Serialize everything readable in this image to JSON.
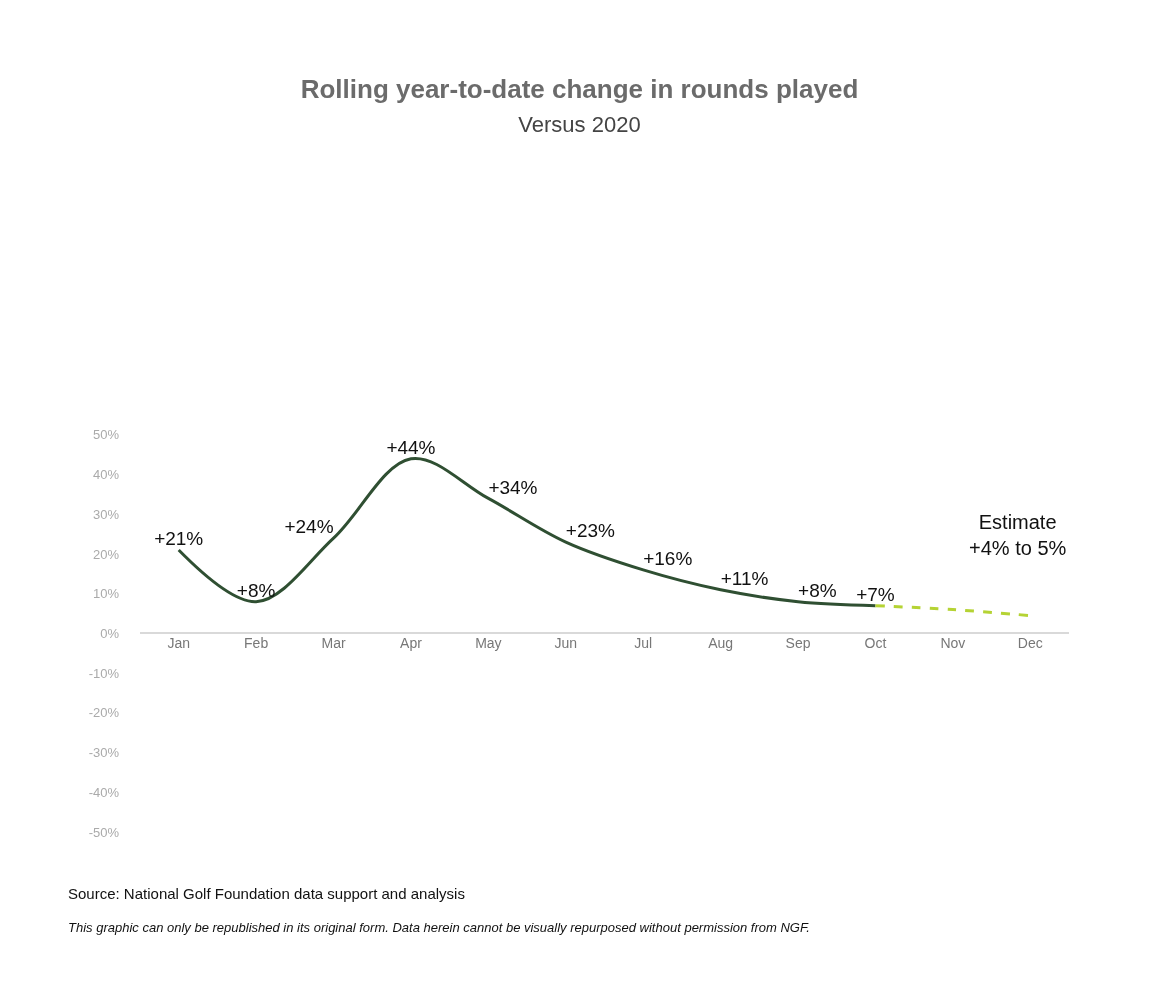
{
  "chart_data": {
    "type": "line",
    "title": "Rolling year-to-date change in rounds played",
    "subtitle": "Versus 2020",
    "categories": [
      "Jan",
      "Feb",
      "Mar",
      "Apr",
      "May",
      "Jun",
      "Jul",
      "Aug",
      "Sep",
      "Oct",
      "Nov",
      "Dec"
    ],
    "series": [
      {
        "color": "#2f4f32",
        "values": [
          21,
          8,
          24,
          44,
          34,
          23,
          16,
          11,
          8,
          7,
          null,
          null
        ],
        "value_labels": [
          "+21%",
          "+8%",
          "+24%",
          "+44%",
          "+34%",
          "+23%",
          "+16%",
          "+11%",
          "+8%",
          "+7%",
          null,
          null
        ],
        "line_style": "solid"
      },
      {
        "color": "#b5d334",
        "values": [
          null,
          null,
          null,
          null,
          null,
          null,
          null,
          null,
          null,
          7,
          6,
          4.5
        ],
        "line_style": "dashed"
      }
    ],
    "ylim": [
      -50,
      50
    ],
    "yticks": [
      {
        "value": -50,
        "label": "-50%"
      },
      {
        "value": -40,
        "label": "-40%"
      },
      {
        "value": -30,
        "label": "-30%"
      },
      {
        "value": -20,
        "label": "-20%"
      },
      {
        "value": -10,
        "label": "-10%"
      },
      {
        "value": 0,
        "label": "0%"
      },
      {
        "value": 10,
        "label": "10%"
      },
      {
        "value": 20,
        "label": "20%"
      },
      {
        "value": 30,
        "label": "30%"
      },
      {
        "value": 40,
        "label": "40%"
      },
      {
        "value": 50,
        "label": "50%"
      }
    ],
    "marker": "none",
    "annotations": [
      "Estimate\n+4% to 5%",
      "Source: National Golf Foundation data support and analysis",
      "This graphic can only be republished in its original form. Data herein cannot be visually repurposed without permission from NGF."
    ]
  }
}
